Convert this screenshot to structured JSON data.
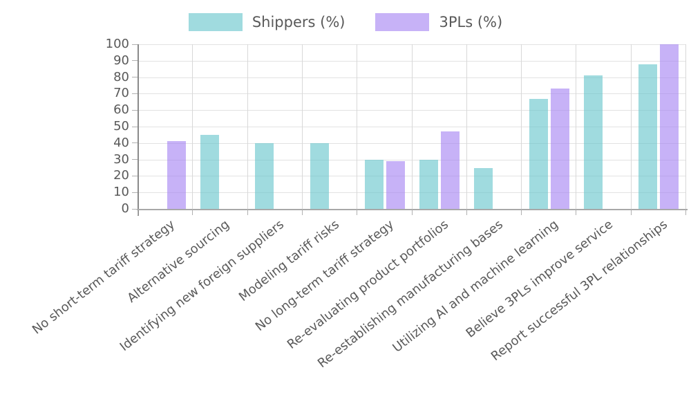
{
  "chart_data": {
    "type": "bar",
    "title": "",
    "xlabel": "",
    "ylabel": "",
    "ylim": [
      0,
      100
    ],
    "yticks": [
      0,
      10,
      20,
      30,
      40,
      50,
      60,
      70,
      80,
      90,
      100
    ],
    "grid": "on",
    "legend_position": "top-center",
    "categories": [
      "No short-term tariff strategy",
      "Alternative sourcing",
      "Identifying new foreign suppliers",
      "Modeling tariff risks",
      "No long-term tariff strategy",
      "Re-evaluating product portfolios",
      "Re-establishing manufacturing bases",
      "Utilizing AI and machine learning",
      "Believe 3PLs improve service",
      "Report successful 3PL relationships"
    ],
    "series": [
      {
        "name": "Shippers (%)",
        "color_hex": "#66C5CC",
        "fill_opacity": 0.62,
        "values": [
          null,
          45,
          40,
          40,
          30,
          30,
          25,
          67,
          81,
          88
        ]
      },
      {
        "name": "3PLs (%)",
        "color_hex": "#A583F2",
        "fill_opacity": 0.62,
        "values": [
          41,
          null,
          null,
          null,
          29,
          47,
          null,
          73,
          null,
          100
        ]
      }
    ]
  },
  "style_colors": {
    "tick_text": "#595959",
    "grid_horizontal": "#e2e2e2",
    "grid_vertical": "#d8d8d8",
    "y_axis_line": "#8a8a8a",
    "x_axis_line": "#a8a8a8",
    "tick_mark": "#b0b0b0",
    "background": "#ffffff"
  }
}
